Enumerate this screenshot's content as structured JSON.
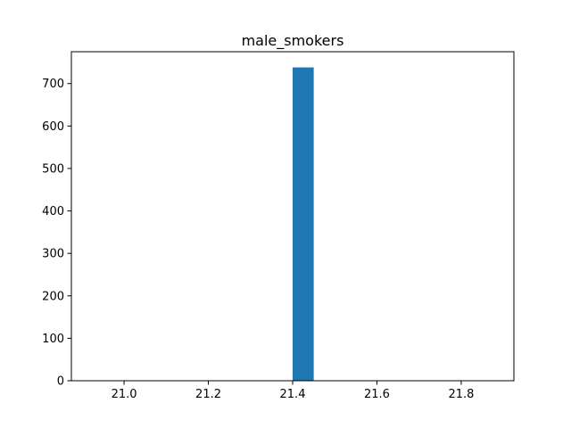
{
  "chart_data": {
    "type": "bar",
    "title": "male_smokers",
    "xlabel": "",
    "ylabel": "",
    "xlim": [
      20.875,
      21.925
    ],
    "ylim": [
      0,
      775
    ],
    "bars": [
      {
        "x0": 21.4,
        "x1": 21.45,
        "value": 738
      }
    ],
    "xticks": [
      21.0,
      21.2,
      21.4,
      21.6,
      21.8
    ],
    "xtick_labels": [
      "21.0",
      "21.2",
      "21.4",
      "21.6",
      "21.8"
    ],
    "yticks": [
      0,
      100,
      200,
      300,
      400,
      500,
      600,
      700
    ],
    "ytick_labels": [
      "0",
      "100",
      "200",
      "300",
      "400",
      "500",
      "600",
      "700"
    ],
    "grid": false,
    "bar_color": "#1f77b4"
  }
}
